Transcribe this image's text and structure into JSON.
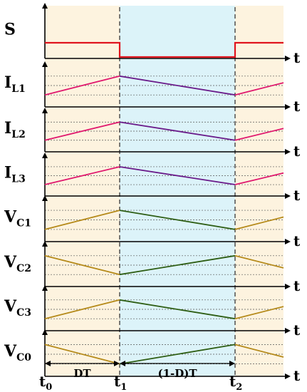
{
  "colors": {
    "panel_bg": "#fdf3df",
    "mid_bg": "#dcf3f9",
    "switch": "#e0141e",
    "inductor_rise": "#e0186e",
    "inductor_fall": "#6a1b8a",
    "cap_ramp": "#b58a1a",
    "cap_ramp_alt": "#2e5e14",
    "axis": "#000000",
    "dash": "#444444"
  },
  "axis_label": "t",
  "rows": [
    {
      "label": "S",
      "sub": "",
      "kind": "switch"
    },
    {
      "label": "I",
      "sub": "L1",
      "kind": "inductor"
    },
    {
      "label": "I",
      "sub": "L2",
      "kind": "inductor"
    },
    {
      "label": "I",
      "sub": "L3",
      "kind": "inductor"
    },
    {
      "label": "V",
      "sub": "C1",
      "kind": "cap_up"
    },
    {
      "label": "V",
      "sub": "C2",
      "kind": "cap_down"
    },
    {
      "label": "V",
      "sub": "C3",
      "kind": "cap_up"
    },
    {
      "label": "V",
      "sub": "C0",
      "kind": "cap_down"
    }
  ],
  "time_marks": [
    {
      "label": "t",
      "sub": "0"
    },
    {
      "label": "t",
      "sub": "1"
    },
    {
      "label": "t",
      "sub": "2"
    }
  ],
  "intervals": [
    "DT",
    "(1-D)T"
  ]
}
